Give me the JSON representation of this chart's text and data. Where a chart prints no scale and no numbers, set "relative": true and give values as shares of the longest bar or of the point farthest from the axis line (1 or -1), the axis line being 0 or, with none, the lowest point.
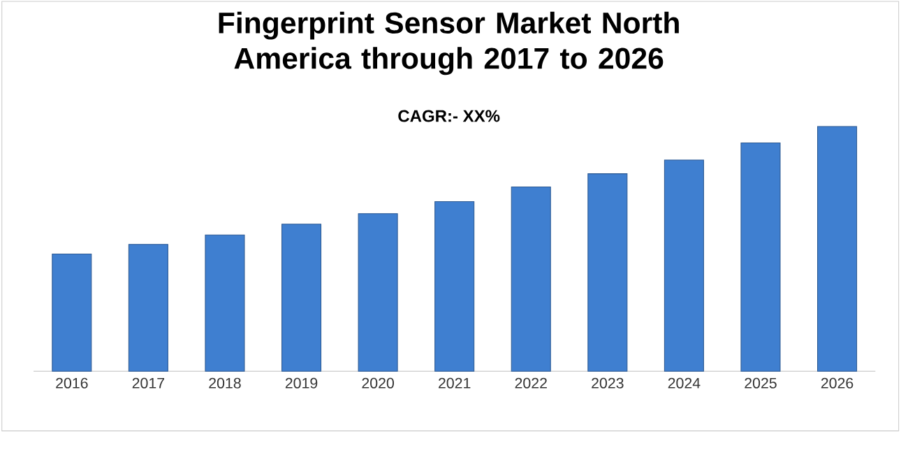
{
  "chart_data": {
    "type": "bar",
    "title": "Fingerprint Sensor Market North America through 2017 to 2026",
    "subtitle": "CAGR:- XX%",
    "categories": [
      "2016",
      "2017",
      "2018",
      "2019",
      "2020",
      "2021",
      "2022",
      "2023",
      "2024",
      "2025",
      "2026"
    ],
    "values": [
      0.479,
      0.518,
      0.557,
      0.601,
      0.644,
      0.693,
      0.753,
      0.807,
      0.863,
      0.933,
      1
    ],
    "color": "#3f7fd0",
    "relative": true
  }
}
